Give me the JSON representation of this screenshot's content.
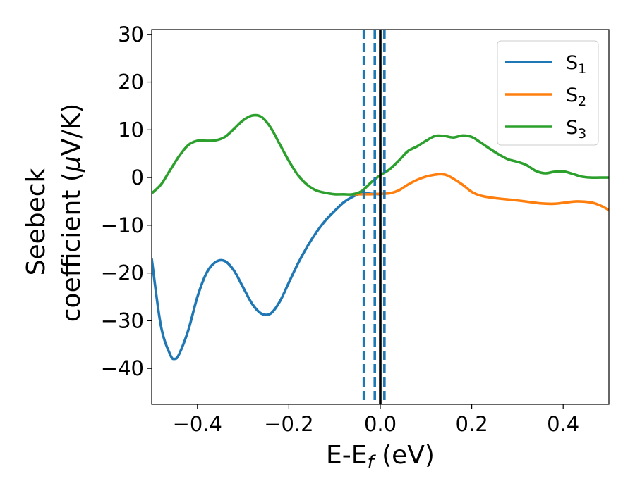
{
  "chart_data": {
    "type": "line",
    "title": "",
    "xlabel": {
      "main": "E-E",
      "sub": "f",
      "suffix": " (eV)"
    },
    "ylabel": {
      "line1": "Seebeck",
      "line2_prefix": "coefficient  (",
      "mu": "μ",
      "line2_suffix": "V/K)"
    },
    "xlim": [
      -0.5,
      0.5
    ],
    "ylim": [
      -47.5,
      31
    ],
    "xticks": [
      -0.4,
      -0.2,
      0.0,
      0.2,
      0.4
    ],
    "xtick_labels": [
      "−0.4",
      "−0.2",
      "0.0",
      "0.2",
      "0.4"
    ],
    "yticks": [
      -40,
      -30,
      -20,
      -10,
      0,
      10,
      20,
      30
    ],
    "ytick_labels": [
      "−40",
      "−30",
      "−20",
      "−10",
      "0",
      "10",
      "20",
      "30"
    ],
    "grid": false,
    "legend_position": "top-right",
    "vlines": [
      {
        "x": 0.0,
        "style": "solid",
        "color": "#000000"
      },
      {
        "x": -0.036,
        "style": "dashed",
        "color": "#1f77b4"
      },
      {
        "x": -0.012,
        "style": "dashed",
        "color": "#1f77b4"
      },
      {
        "x": 0.009,
        "style": "dashed",
        "color": "#1f77b4"
      }
    ],
    "series": [
      {
        "name": "S",
        "sub": "1",
        "color": "#1f77b4",
        "x": [
          -0.5,
          -0.48,
          -0.46,
          -0.45,
          -0.44,
          -0.42,
          -0.4,
          -0.38,
          -0.36,
          -0.34,
          -0.32,
          -0.3,
          -0.28,
          -0.26,
          -0.24,
          -0.22,
          -0.2,
          -0.18,
          -0.16,
          -0.14,
          -0.12,
          -0.1,
          -0.08,
          -0.06,
          -0.04,
          -0.02,
          0.0
        ],
        "y": [
          -17,
          -31,
          -37,
          -38,
          -37,
          -32,
          -25,
          -20,
          -17.7,
          -17.5,
          -19.5,
          -23,
          -26.5,
          -28.5,
          -28.5,
          -26,
          -22,
          -18,
          -14.5,
          -11.5,
          -9,
          -7,
          -5.2,
          -4,
          -3.3,
          -3.4,
          -3.5
        ]
      },
      {
        "name": "S",
        "sub": "2",
        "color": "#ff7f0e",
        "x": [
          -0.06,
          -0.04,
          -0.02,
          0.0,
          0.02,
          0.04,
          0.06,
          0.08,
          0.1,
          0.12,
          0.135,
          0.15,
          0.18,
          0.2,
          0.22,
          0.25,
          0.3,
          0.35,
          0.38,
          0.4,
          0.43,
          0.46,
          0.48,
          0.5
        ],
        "y": [
          -3.5,
          -3.5,
          -3.5,
          -3.4,
          -3.3,
          -2.7,
          -1.5,
          -0.5,
          0.2,
          0.6,
          0.7,
          0.3,
          -1.5,
          -3.0,
          -3.8,
          -4.3,
          -4.8,
          -5.4,
          -5.5,
          -5.3,
          -5.0,
          -5.2,
          -5.8,
          -6.8
        ]
      },
      {
        "name": "S",
        "sub": "3",
        "color": "#2ca02c",
        "x": [
          -0.5,
          -0.48,
          -0.46,
          -0.44,
          -0.42,
          -0.4,
          -0.38,
          -0.36,
          -0.34,
          -0.32,
          -0.3,
          -0.28,
          -0.26,
          -0.24,
          -0.22,
          -0.2,
          -0.18,
          -0.16,
          -0.14,
          -0.12,
          -0.1,
          -0.08,
          -0.06,
          -0.04,
          -0.02,
          0.0,
          0.02,
          0.04,
          0.06,
          0.08,
          0.1,
          0.12,
          0.14,
          0.16,
          0.18,
          0.2,
          0.22,
          0.24,
          0.26,
          0.28,
          0.3,
          0.32,
          0.34,
          0.36,
          0.38,
          0.4,
          0.42,
          0.44,
          0.46,
          0.48,
          0.5
        ],
        "y": [
          -3.3,
          -1.5,
          1.5,
          4.5,
          6.8,
          7.7,
          7.7,
          7.8,
          8.5,
          10.2,
          12,
          13,
          12.7,
          10.5,
          7.0,
          3.5,
          0.5,
          -1.5,
          -2.7,
          -3.2,
          -3.5,
          -3.5,
          -3.5,
          -2.8,
          -1.0,
          0.5,
          1.7,
          3.5,
          5.5,
          6.5,
          7.7,
          8.7,
          8.7,
          8.4,
          8.8,
          8.5,
          7.3,
          6.0,
          4.8,
          3.8,
          3.3,
          2.6,
          1.4,
          0.9,
          1.2,
          1.3,
          0.8,
          0.2,
          0.0,
          0.0,
          0.0
        ]
      }
    ]
  }
}
